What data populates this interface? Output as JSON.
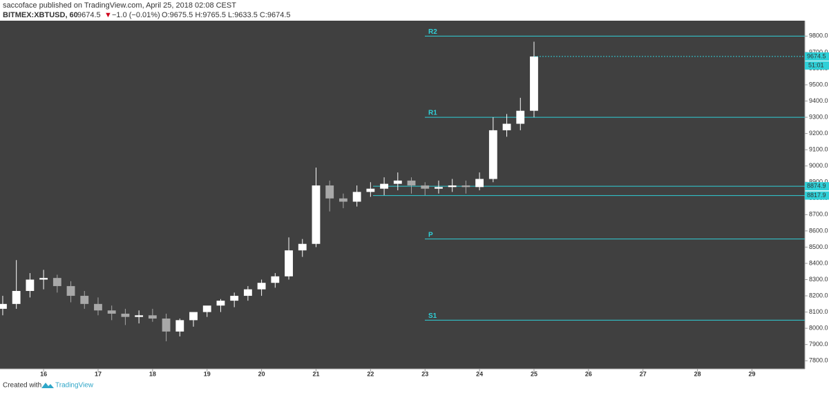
{
  "header": {
    "publisher": "saccoface published on TradingView.com, April 25, 2018 02:08 CEST",
    "symbol": "BITMEX:XBTUSD, 60",
    "last": 9674.5,
    "arrow": "▼",
    "change": "−1.0 (−0.01%)",
    "ohlc": "O:9675.5 H:9765.5 L:9633.5 C:9674.5"
  },
  "chart_data": {
    "type": "candlestick",
    "x": [
      15.25,
      15.5,
      15.75,
      16,
      16.25,
      16.5,
      16.75,
      17,
      17.25,
      17.5,
      17.75,
      18,
      18.25,
      18.5,
      18.75,
      19,
      19.25,
      19.5,
      19.75,
      20,
      20.25,
      20.5,
      20.75,
      21,
      21.25,
      21.5,
      21.75,
      22,
      22.25,
      22.5,
      22.75,
      23,
      23.25,
      23.5,
      23.75,
      24,
      24.25,
      24.5,
      24.75,
      25
    ],
    "open": [
      8120,
      8150,
      8230,
      8300,
      8310,
      8260,
      8200,
      8150,
      8110,
      8090,
      8070,
      8080,
      8060,
      7980,
      8050,
      8100,
      8140,
      8170,
      8200,
      8240,
      8280,
      8320,
      8480,
      8520,
      8880,
      8800,
      8780,
      8840,
      8860,
      8890,
      8910,
      8880,
      8860,
      8870,
      8880,
      8870,
      8920,
      9220,
      9260,
      9340
    ],
    "high": [
      8200,
      8420,
      8340,
      8360,
      8330,
      8290,
      8230,
      8190,
      8140,
      8120,
      8110,
      8120,
      8090,
      8060,
      8090,
      8130,
      8180,
      8220,
      8260,
      8300,
      8340,
      8560,
      8550,
      8990,
      8910,
      8830,
      8880,
      8900,
      8930,
      8960,
      8930,
      8900,
      8910,
      8920,
      8910,
      8960,
      9300,
      9320,
      9420,
      9765.5
    ],
    "low": [
      8080,
      8120,
      8190,
      8240,
      8220,
      8160,
      8120,
      8080,
      8050,
      8020,
      8030,
      8040,
      7920,
      7950,
      8010,
      8070,
      8100,
      8130,
      8170,
      8200,
      8250,
      8300,
      8440,
      8500,
      8720,
      8740,
      8750,
      8810,
      8820,
      8850,
      8830,
      8820,
      8830,
      8840,
      8830,
      8850,
      8900,
      9180,
      9220,
      9300
    ],
    "close": [
      8150,
      8230,
      8300,
      8310,
      8260,
      8200,
      8150,
      8110,
      8090,
      8070,
      8080,
      8060,
      7980,
      8050,
      8100,
      8140,
      8170,
      8200,
      8240,
      8280,
      8320,
      8480,
      8520,
      8880,
      8800,
      8780,
      8840,
      8860,
      8890,
      8910,
      8880,
      8860,
      8870,
      8880,
      8870,
      8920,
      9220,
      9260,
      9340,
      9674.5
    ],
    "up_color": "#ffffff",
    "down_color": "#a8a8a8",
    "background": "#404040",
    "xlim": [
      15.2,
      29.97
    ],
    "xticks": [
      16,
      17,
      18,
      19,
      20,
      21,
      22,
      23,
      24,
      25,
      26,
      27,
      28,
      29
    ],
    "ylim": [
      7750,
      9895
    ],
    "yticks": [
      {
        "value": 7800,
        "label": "7800.0"
      },
      {
        "value": 7900,
        "label": "7900.0"
      },
      {
        "value": 8000,
        "label": "8000.0"
      },
      {
        "value": 8100,
        "label": "8100.0"
      },
      {
        "value": 8200,
        "label": "8200.0"
      },
      {
        "value": 8300,
        "label": "8300.0"
      },
      {
        "value": 8400,
        "label": "8400.0"
      },
      {
        "value": 8500,
        "label": "8500.0"
      },
      {
        "value": 8600,
        "label": "8600.0"
      },
      {
        "value": 8700,
        "label": "8700.0"
      },
      {
        "value": 8800,
        "label": "8800.0"
      },
      {
        "value": 8900,
        "label": "8900.0"
      },
      {
        "value": 9000,
        "label": "9000.0"
      },
      {
        "value": 9100,
        "label": "9100.0"
      },
      {
        "value": 9200,
        "label": "9200.0"
      },
      {
        "value": 9300,
        "label": "9300.0"
      },
      {
        "value": 9400,
        "label": "9400.0"
      },
      {
        "value": 9500,
        "label": "9500.0"
      },
      {
        "value": 9600,
        "label": "9600.0"
      },
      {
        "value": 9700,
        "label": "9700.0"
      },
      {
        "value": 9800,
        "label": "9800.0"
      }
    ],
    "pivot_color": "#2fd0d8",
    "pivots": [
      {
        "name": "R2",
        "value": 9800
      },
      {
        "name": "R1",
        "value": 9300
      },
      {
        "name": "P",
        "value": 8550
      },
      {
        "name": "S1",
        "value": 8050
      }
    ],
    "price_lines": [
      {
        "value": 8874.9,
        "label": "8874.9"
      },
      {
        "value": 8817.9,
        "label": "8817.9"
      }
    ],
    "last_price": {
      "value": 9674.5,
      "label": "9674.5"
    },
    "countdown": "51:01"
  },
  "footer": {
    "created": "Created with",
    "brand": "TradingView"
  }
}
